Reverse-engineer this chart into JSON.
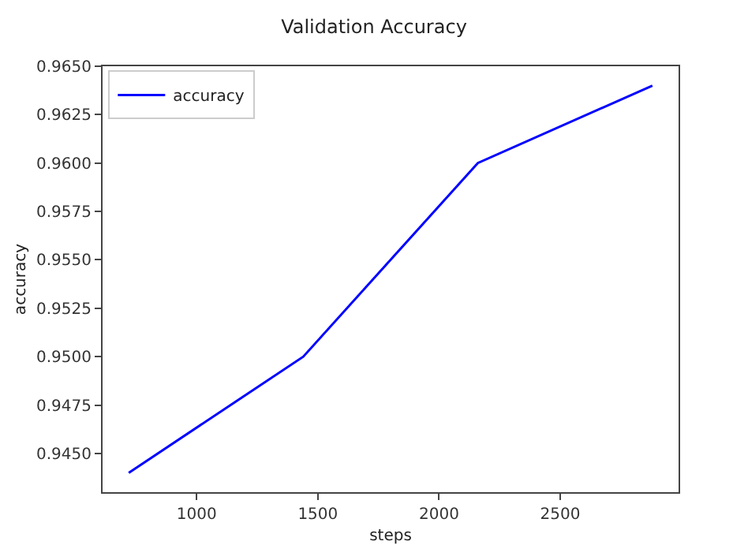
{
  "chart_data": {
    "type": "line",
    "title": "Validation Accuracy",
    "xlabel": "steps",
    "ylabel": "accuracy",
    "x": [
      720,
      1440,
      2160,
      2880
    ],
    "series": [
      {
        "name": "accuracy",
        "color": "#0000ff",
        "values": [
          0.944,
          0.95,
          0.96,
          0.964
        ]
      }
    ],
    "xlim": [
      612,
      2988
    ],
    "xticks": [
      1000,
      1500,
      2000,
      2500
    ],
    "ylim": [
      0.943,
      0.965
    ],
    "yticks": [
      {
        "value": 0.945,
        "label": "0.9450"
      },
      {
        "value": 0.9475,
        "label": "0.9475"
      },
      {
        "value": 0.95,
        "label": "0.9500"
      },
      {
        "value": 0.9525,
        "label": "0.9525"
      },
      {
        "value": 0.955,
        "label": "0.9550"
      },
      {
        "value": 0.9575,
        "label": "0.9575"
      },
      {
        "value": 0.96,
        "label": "0.9600"
      },
      {
        "value": 0.9625,
        "label": "0.9625"
      },
      {
        "value": 0.965,
        "label": "0.9650"
      }
    ],
    "legend": "top left",
    "marker": "none",
    "line_style": "solid"
  }
}
